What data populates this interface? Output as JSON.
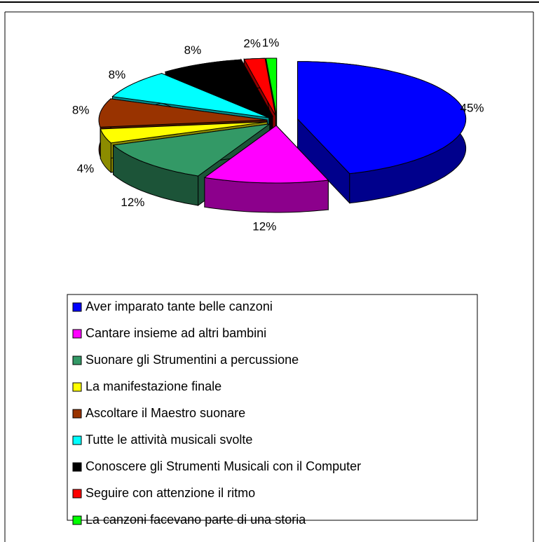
{
  "chart_data": {
    "type": "pie3d",
    "categories": [
      "Aver imparato tante belle canzoni",
      "Cantare insieme ad altri bambini",
      "Suonare gli Strumentini a percussione",
      "La manifestazione finale",
      "Ascoltare il Maestro suonare",
      "Tutte le attività musicali svolte",
      "Conoscere gli Strumenti Musicali con il Computer",
      "Seguire con attenzione il ritmo",
      "La canzoni facevano parte di una storia"
    ],
    "values": [
      45,
      12,
      12,
      4,
      8,
      8,
      8,
      2,
      1
    ],
    "value_labels": [
      "45%",
      "12%",
      "12%",
      "4%",
      "8%",
      "8%",
      "8%",
      "2%",
      "1%"
    ],
    "colors": [
      "#0000ff",
      "#ff00ff",
      "#339966",
      "#ffff00",
      "#993300",
      "#00ffff",
      "#000000",
      "#ff0000",
      "#00ff00"
    ],
    "legend": "bottom"
  }
}
